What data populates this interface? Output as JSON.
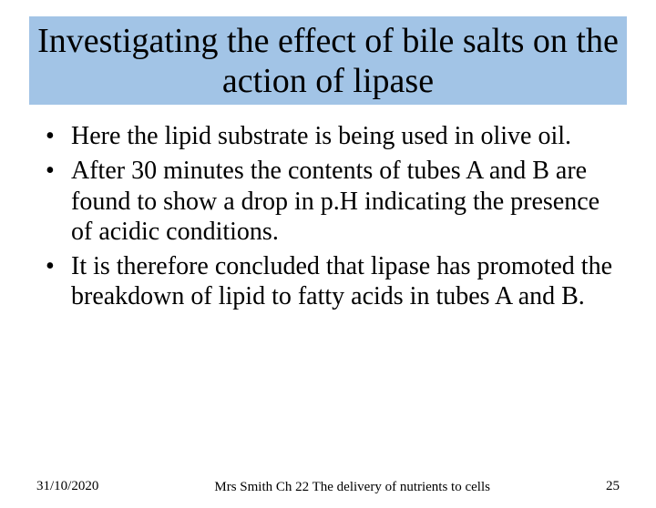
{
  "title": "Investigating the effect of bile salts on the action of lipase",
  "bullets": [
    "Here the lipid substrate is being used in olive oil.",
    "After 30 minutes the contents of tubes A and B are found to show a drop in p.H indicating the presence of acidic conditions.",
    "It is therefore concluded that lipase has promoted the breakdown of lipid to fatty acids in tubes A and B."
  ],
  "footer": {
    "date": "31/10/2020",
    "center": "Mrs Smith Ch 22 The delivery of nutrients to cells",
    "page": "25"
  },
  "colors": {
    "title_bg": "#a2c4e6",
    "text": "#000000",
    "page_bg": "#ffffff"
  }
}
